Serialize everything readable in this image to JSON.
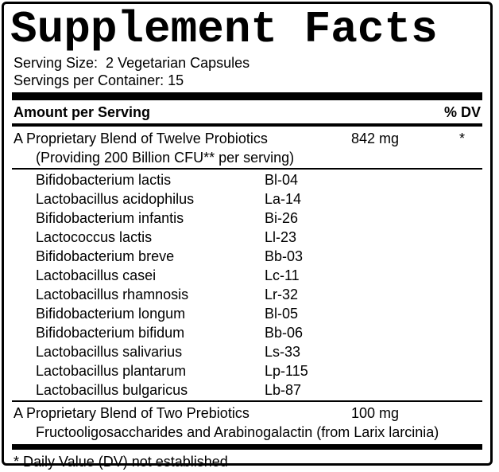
{
  "label": {
    "title": "Supplement Facts",
    "serving_size": "Serving Size:  2 Vegetarian Capsules",
    "servings_per_container": "Servings per Container: 15",
    "header": {
      "amount_label": "Amount per Serving",
      "dv_label": "% DV"
    },
    "probiotic_blend": {
      "name": "A Proprietary Blend of Twelve Probiotics",
      "amount": "842 mg",
      "dv": "*",
      "sub": "(Providing 200 Billion CFU** per serving)"
    },
    "strains": [
      {
        "name": "Bifidobacterium lactis",
        "code": "Bl-04"
      },
      {
        "name": "Lactobacillus acidophilus",
        "code": "La-14"
      },
      {
        "name": "Bifidobacterium infantis",
        "code": "Bi-26"
      },
      {
        "name": "Lactococcus lactis",
        "code": "Ll-23"
      },
      {
        "name": "Bifidobacterium breve",
        "code": "Bb-03"
      },
      {
        "name": "Lactobacillus casei",
        "code": "Lc-11"
      },
      {
        "name": "Lactobacillus rhamnosis",
        "code": "Lr-32"
      },
      {
        "name": "Bifidobacterium longum",
        "code": "Bl-05"
      },
      {
        "name": "Bifidobacterium bifidum",
        "code": "Bb-06"
      },
      {
        "name": "Lactobacillus salivarius",
        "code": "Ls-33"
      },
      {
        "name": "Lactobacillus plantarum",
        "code": "Lp-115"
      },
      {
        "name": "Lactobacillus bulgaricus",
        "code": "Lb-87"
      }
    ],
    "prebiotic_blend": {
      "name": "A Proprietary Blend of Two Prebiotics",
      "amount": "100 mg",
      "dv": "",
      "sub": "Fructooligosaccharides and Arabinogalactin (from Larix larcinia)"
    },
    "footnote": "* Daily Value (DV) not established"
  },
  "colors": {
    "text": "#000000",
    "background": "#ffffff",
    "rule": "#000000"
  }
}
